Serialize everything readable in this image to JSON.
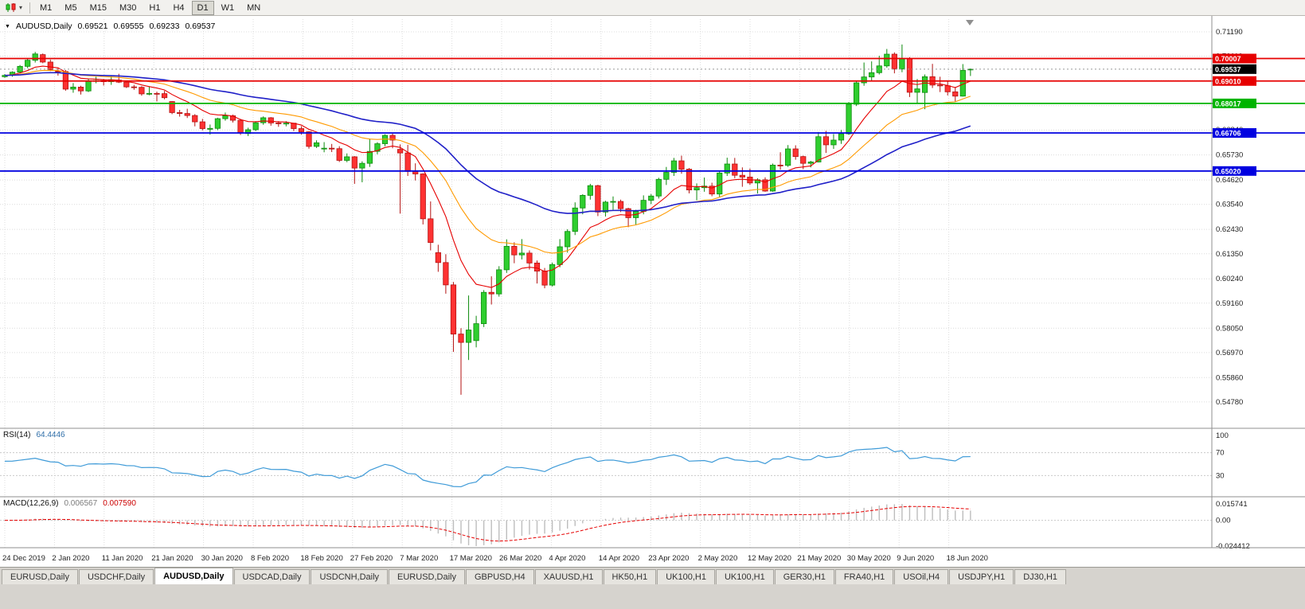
{
  "toolbar": {
    "dropdown_caret": "▾",
    "timeframes": [
      {
        "label": "M1",
        "active": false
      },
      {
        "label": "M5",
        "active": false
      },
      {
        "label": "M15",
        "active": false
      },
      {
        "label": "M30",
        "active": false
      },
      {
        "label": "H1",
        "active": false
      },
      {
        "label": "H4",
        "active": false
      },
      {
        "label": "D1",
        "active": true
      },
      {
        "label": "W1",
        "active": false
      },
      {
        "label": "MN",
        "active": false
      }
    ]
  },
  "symbol_header": {
    "dropdown_icon": "▼",
    "symbol": "AUDUSD,Daily",
    "open": "0.69521",
    "high": "0.69555",
    "low": "0.69233",
    "close": "0.69537"
  },
  "chart_data": {
    "type": "candlestick",
    "symbol": "AUDUSD",
    "timeframe": "Daily",
    "x_labels": [
      "24 Dec 2019",
      "2 Jan 2020",
      "11 Jan 2020",
      "21 Jan 2020",
      "30 Jan 2020",
      "8 Feb 2020",
      "18 Feb 2020",
      "27 Feb 2020",
      "7 Mar 2020",
      "17 Mar 2020",
      "26 Mar 2020",
      "4 Apr 2020",
      "14 Apr 2020",
      "23 Apr 2020",
      "2 May 2020",
      "12 May 2020",
      "21 May 2020",
      "30 May 2020",
      "9 Jun 2020",
      "18 Jun 2020"
    ],
    "y_axis_labels": [
      "0.71190",
      "0.70110",
      "0.69030",
      "0.67920",
      "0.66840",
      "0.65730",
      "0.64620",
      "0.63540",
      "0.62430",
      "0.61350",
      "0.60240",
      "0.59160",
      "0.58050",
      "0.56970",
      "0.55860",
      "0.54780"
    ],
    "candle_colors": {
      "bull": "#2fce2f",
      "bull_border": "#0e8a0e",
      "bear": "#ff3232",
      "bear_border": "#b31212"
    },
    "candles": [
      [
        0.692,
        0.6932,
        0.6915,
        0.6926
      ],
      [
        0.6926,
        0.6944,
        0.692,
        0.694
      ],
      [
        0.694,
        0.6972,
        0.6935,
        0.6966
      ],
      [
        0.6966,
        0.7,
        0.6958,
        0.6993
      ],
      [
        0.6993,
        0.703,
        0.6983,
        0.7021
      ],
      [
        0.7018,
        0.7023,
        0.698,
        0.6985
      ],
      [
        0.6985,
        0.6996,
        0.6945,
        0.6951
      ],
      [
        0.6945,
        0.6958,
        0.6925,
        0.6943
      ],
      [
        0.6943,
        0.695,
        0.6858,
        0.6865
      ],
      [
        0.6865,
        0.6892,
        0.6849,
        0.6874
      ],
      [
        0.6874,
        0.688,
        0.6841,
        0.6857
      ],
      [
        0.6857,
        0.6911,
        0.6852,
        0.69
      ],
      [
        0.69,
        0.692,
        0.6891,
        0.6903
      ],
      [
        0.6903,
        0.691,
        0.6881,
        0.6898
      ],
      [
        0.6898,
        0.6925,
        0.6884,
        0.6905
      ],
      [
        0.6905,
        0.6933,
        0.6892,
        0.6896
      ],
      [
        0.6896,
        0.6903,
        0.687,
        0.6875
      ],
      [
        0.6875,
        0.6884,
        0.6862,
        0.6873
      ],
      [
        0.6873,
        0.6878,
        0.6836,
        0.6844
      ],
      [
        0.6844,
        0.6878,
        0.6838,
        0.6846
      ],
      [
        0.6846,
        0.6854,
        0.681,
        0.6845
      ],
      [
        0.6845,
        0.6857,
        0.682,
        0.6827
      ],
      [
        0.681,
        0.6812,
        0.6754,
        0.6761
      ],
      [
        0.6761,
        0.6773,
        0.6743,
        0.6757
      ],
      [
        0.6757,
        0.6778,
        0.6737,
        0.6748
      ],
      [
        0.6748,
        0.6754,
        0.67,
        0.672
      ],
      [
        0.672,
        0.6733,
        0.6682,
        0.669
      ],
      [
        0.6687,
        0.6708,
        0.6663,
        0.6691
      ],
      [
        0.6691,
        0.6738,
        0.6683,
        0.6734
      ],
      [
        0.6734,
        0.6761,
        0.6725,
        0.6747
      ],
      [
        0.6747,
        0.6752,
        0.6717,
        0.6727
      ],
      [
        0.6727,
        0.6733,
        0.6662,
        0.667
      ],
      [
        0.6668,
        0.6694,
        0.6657,
        0.6685
      ],
      [
        0.6685,
        0.6723,
        0.6679,
        0.6716
      ],
      [
        0.6716,
        0.6744,
        0.6707,
        0.6738
      ],
      [
        0.6738,
        0.6741,
        0.6703,
        0.6715
      ],
      [
        0.6715,
        0.6723,
        0.6698,
        0.6713
      ],
      [
        0.6713,
        0.6723,
        0.67,
        0.6714
      ],
      [
        0.6714,
        0.6715,
        0.6679,
        0.669
      ],
      [
        0.669,
        0.6701,
        0.6663,
        0.6676
      ],
      [
        0.6676,
        0.6678,
        0.6601,
        0.6611
      ],
      [
        0.6611,
        0.6638,
        0.6604,
        0.6627
      ],
      [
        0.6602,
        0.663,
        0.6585,
        0.6603
      ],
      [
        0.6603,
        0.6622,
        0.6586,
        0.6601
      ],
      [
        0.6601,
        0.6612,
        0.6542,
        0.6549
      ],
      [
        0.6549,
        0.658,
        0.6541,
        0.6565
      ],
      [
        0.6565,
        0.6568,
        0.6445,
        0.6515
      ],
      [
        0.6515,
        0.6545,
        0.6452,
        0.6536
      ],
      [
        0.6536,
        0.6646,
        0.652,
        0.6589
      ],
      [
        0.6589,
        0.663,
        0.6576,
        0.6623
      ],
      [
        0.6623,
        0.6665,
        0.6612,
        0.666
      ],
      [
        0.666,
        0.6668,
        0.6603,
        0.6639
      ],
      [
        0.6598,
        0.662,
        0.6313,
        0.6582
      ],
      [
        0.6582,
        0.6618,
        0.648,
        0.65
      ],
      [
        0.65,
        0.6536,
        0.646,
        0.6489
      ],
      [
        0.6489,
        0.6492,
        0.6265,
        0.629
      ],
      [
        0.629,
        0.6367,
        0.615,
        0.6185
      ],
      [
        0.614,
        0.6175,
        0.6055,
        0.6096
      ],
      [
        0.6096,
        0.6133,
        0.5958,
        0.5997
      ],
      [
        0.5997,
        0.601,
        0.57,
        0.5779
      ],
      [
        0.5779,
        0.5805,
        0.551,
        0.5742
      ],
      [
        0.5742,
        0.595,
        0.5664,
        0.5797
      ],
      [
        0.575,
        0.586,
        0.572,
        0.5825
      ],
      [
        0.5825,
        0.5974,
        0.581,
        0.5964
      ],
      [
        0.5964,
        0.6035,
        0.591,
        0.5957
      ],
      [
        0.5957,
        0.608,
        0.5945,
        0.6064
      ],
      [
        0.6064,
        0.6199,
        0.605,
        0.6168
      ],
      [
        0.6168,
        0.6186,
        0.6093,
        0.613
      ],
      [
        0.613,
        0.62,
        0.611,
        0.6138
      ],
      [
        0.6138,
        0.615,
        0.6065,
        0.6094
      ],
      [
        0.6094,
        0.6105,
        0.6003,
        0.6058
      ],
      [
        0.6058,
        0.6072,
        0.5982,
        0.5996
      ],
      [
        0.5996,
        0.6096,
        0.599,
        0.6087
      ],
      [
        0.6087,
        0.62,
        0.6075,
        0.6166
      ],
      [
        0.6166,
        0.6244,
        0.614,
        0.6234
      ],
      [
        0.6234,
        0.6363,
        0.6218,
        0.6338
      ],
      [
        0.6338,
        0.6399,
        0.631,
        0.6394
      ],
      [
        0.6394,
        0.6445,
        0.6375,
        0.6437
      ],
      [
        0.6437,
        0.6441,
        0.6302,
        0.632
      ],
      [
        0.632,
        0.637,
        0.63,
        0.6364
      ],
      [
        0.6364,
        0.6389,
        0.633,
        0.6367
      ],
      [
        0.6367,
        0.6375,
        0.632,
        0.6335
      ],
      [
        0.6335,
        0.6339,
        0.6253,
        0.6295
      ],
      [
        0.6295,
        0.633,
        0.6265,
        0.6323
      ],
      [
        0.6323,
        0.6394,
        0.631,
        0.6372
      ],
      [
        0.6372,
        0.64,
        0.6355,
        0.6391
      ],
      [
        0.6391,
        0.6472,
        0.638,
        0.6465
      ],
      [
        0.6465,
        0.652,
        0.644,
        0.6496
      ],
      [
        0.6496,
        0.656,
        0.648,
        0.6547
      ],
      [
        0.6547,
        0.657,
        0.649,
        0.651
      ],
      [
        0.651,
        0.6515,
        0.6403,
        0.6418
      ],
      [
        0.6418,
        0.6447,
        0.6372,
        0.6428
      ],
      [
        0.6428,
        0.6473,
        0.641,
        0.6435
      ],
      [
        0.6435,
        0.645,
        0.639,
        0.64
      ],
      [
        0.64,
        0.65,
        0.6385,
        0.6493
      ],
      [
        0.6493,
        0.6561,
        0.648,
        0.6533
      ],
      [
        0.6533,
        0.656,
        0.647,
        0.6483
      ],
      [
        0.6483,
        0.6518,
        0.6432,
        0.6475
      ],
      [
        0.6475,
        0.6513,
        0.644,
        0.6449
      ],
      [
        0.6449,
        0.647,
        0.6402,
        0.6463
      ],
      [
        0.6463,
        0.6474,
        0.641,
        0.6413
      ],
      [
        0.6413,
        0.6535,
        0.641,
        0.6528
      ],
      [
        0.6528,
        0.6585,
        0.6508,
        0.6527
      ],
      [
        0.6527,
        0.6617,
        0.652,
        0.66
      ],
      [
        0.66,
        0.6616,
        0.6552,
        0.6566
      ],
      [
        0.6566,
        0.657,
        0.651,
        0.6536
      ],
      [
        0.6536,
        0.6547,
        0.6518,
        0.6542
      ],
      [
        0.6542,
        0.6675,
        0.654,
        0.6654
      ],
      [
        0.6654,
        0.668,
        0.6582,
        0.6618
      ],
      [
        0.6618,
        0.6666,
        0.66,
        0.6639
      ],
      [
        0.6639,
        0.6684,
        0.6622,
        0.6667
      ],
      [
        0.6667,
        0.6808,
        0.6662,
        0.6798
      ],
      [
        0.6798,
        0.6899,
        0.679,
        0.6893
      ],
      [
        0.6893,
        0.6983,
        0.688,
        0.6919
      ],
      [
        0.6919,
        0.6988,
        0.6902,
        0.6938
      ],
      [
        0.6938,
        0.7013,
        0.693,
        0.6968
      ],
      [
        0.6968,
        0.7043,
        0.696,
        0.702
      ],
      [
        0.702,
        0.7028,
        0.6935,
        0.6954
      ],
      [
        0.6954,
        0.7063,
        0.694,
        0.7
      ],
      [
        0.7,
        0.7007,
        0.683,
        0.6851
      ],
      [
        0.6851,
        0.691,
        0.68,
        0.6866
      ],
      [
        0.685,
        0.693,
        0.6776,
        0.692
      ],
      [
        0.692,
        0.6977,
        0.687,
        0.6883
      ],
      [
        0.6883,
        0.692,
        0.6852,
        0.688
      ],
      [
        0.688,
        0.69,
        0.6837,
        0.6853
      ],
      [
        0.6853,
        0.6875,
        0.681,
        0.6834
      ],
      [
        0.6834,
        0.6976,
        0.6832,
        0.6948
      ],
      [
        0.69521,
        0.69555,
        0.69233,
        0.69537
      ]
    ],
    "moving_averages": [
      {
        "name": "fast-ma",
        "period": 9,
        "color": "#e60000"
      },
      {
        "name": "medium-ma",
        "period": 21,
        "color": "#ff9a00"
      },
      {
        "name": "slow-ma",
        "period": 45,
        "color": "#2020c8"
      }
    ],
    "hlines": [
      {
        "price": 0.70007,
        "label": "0.70007",
        "color": "#e60000"
      },
      {
        "price": 0.6901,
        "label": "0.69010",
        "color": "#e60000"
      },
      {
        "price": 0.68017,
        "label": "0.68017",
        "color": "#00b400"
      },
      {
        "price": 0.66706,
        "label": "0.66706",
        "color": "#0000e0"
      },
      {
        "price": 0.6502,
        "label": "0.65020",
        "color": "#0000e0"
      }
    ],
    "current_price": {
      "value": 0.69537,
      "label": "0.69537",
      "badge_color": "#000000"
    },
    "indicators": {
      "rsi": {
        "name": "RSI(14)",
        "value": "64.4446",
        "levels": [
          "100",
          "70",
          "30"
        ],
        "line_color": "#3f9bd8"
      },
      "macd": {
        "name": "MACD(12,26,9)",
        "value_main": "0.006567",
        "value_signal": "0.007590",
        "axis_max": "0.015741",
        "axis_zero": "0.00",
        "axis_min": "-0.024412",
        "histogram_color": "#bdbdbd",
        "signal_color": "#e60000"
      }
    }
  },
  "tabs": [
    {
      "label": "EURUSD,Daily",
      "active": false
    },
    {
      "label": "USDCHF,Daily",
      "active": false
    },
    {
      "label": "AUDUSD,Daily",
      "active": true
    },
    {
      "label": "USDCAD,Daily",
      "active": false
    },
    {
      "label": "USDCNH,Daily",
      "active": false
    },
    {
      "label": "EURUSD,Daily",
      "active": false
    },
    {
      "label": "GBPUSD,H4",
      "active": false
    },
    {
      "label": "XAUUSD,H1",
      "active": false
    },
    {
      "label": "HK50,H1",
      "active": false
    },
    {
      "label": "UK100,H1",
      "active": false
    },
    {
      "label": "UK100,H1",
      "active": false
    },
    {
      "label": "GER30,H1",
      "active": false
    },
    {
      "label": "FRA40,H1",
      "active": false
    },
    {
      "label": "USOil,H4",
      "active": false
    },
    {
      "label": "USDJPY,H1",
      "active": false
    },
    {
      "label": "DJ30,H1",
      "active": false
    }
  ]
}
